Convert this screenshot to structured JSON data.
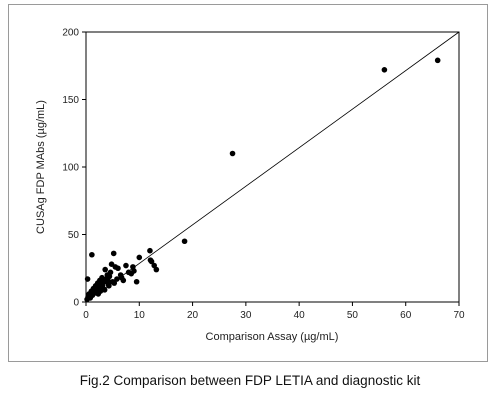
{
  "caption": "Fig.2 Comparison between FDP LETIA and diagnostic kit",
  "chart_data": {
    "type": "scatter",
    "title": "",
    "xlabel": "Comparison Assay (µg/mL)",
    "ylabel": "CUSAg FDP MAbs (µg/mL)",
    "xlim": [
      0,
      70
    ],
    "ylim": [
      0,
      200
    ],
    "xticks": [
      0,
      10,
      20,
      30,
      40,
      50,
      60,
      70
    ],
    "yticks": [
      0,
      50,
      100,
      150,
      200
    ],
    "grid": false,
    "trendline": {
      "x": [
        0,
        70
      ],
      "y": [
        0,
        200
      ]
    },
    "series": [
      {
        "x": [
          0.2,
          0.4,
          0.6,
          0.8,
          1.0,
          1.2,
          1.4,
          1.6,
          1.8,
          2.0,
          2.2,
          2.4,
          2.6,
          2.8,
          3.0,
          3.2,
          3.4,
          3.6,
          3.8,
          4.0,
          4.2,
          4.4,
          4.6,
          4.8,
          5.0,
          5.2,
          5.5,
          6.0,
          6.5,
          7.0,
          7.5,
          8.0,
          8.5,
          9.0,
          9.5,
          10.0,
          12.0,
          12.3,
          12.8,
          13.2,
          18.5,
          27.5,
          56.0,
          66.0,
          0.3,
          1.1,
          2.3,
          3.5,
          4.3,
          5.3,
          5.8,
          3.1,
          2.7,
          4.1,
          6.7,
          8.8,
          12.1
        ],
        "y": [
          2,
          4,
          6,
          3,
          8,
          5,
          10,
          7,
          12,
          9,
          14,
          11,
          16,
          13,
          18,
          10,
          15,
          24,
          17,
          20,
          13,
          19,
          22,
          28,
          15,
          36,
          26,
          25,
          20,
          16,
          27,
          22,
          21,
          23,
          15,
          33,
          38,
          30,
          27,
          24,
          45,
          110,
          172,
          179,
          17,
          35,
          6,
          9,
          12,
          14,
          17,
          12,
          8,
          16,
          18,
          26,
          31
        ]
      }
    ]
  }
}
